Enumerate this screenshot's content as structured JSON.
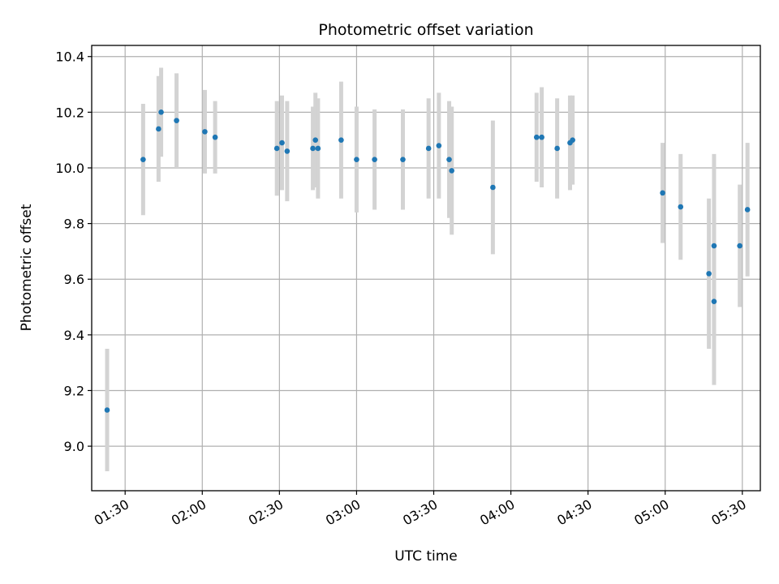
{
  "chart_data": {
    "type": "scatter",
    "title": "Photometric offset variation",
    "xlabel": "UTC time",
    "ylabel": "Photometric offset",
    "x_unit": "HH:MM UTC",
    "xlim": [
      "01:17",
      "05:37"
    ],
    "ylim": [
      8.84,
      10.44
    ],
    "x_ticks": [
      "01:30",
      "02:00",
      "02:30",
      "03:00",
      "03:30",
      "04:00",
      "04:30",
      "05:00",
      "05:30"
    ],
    "y_ticks": [
      9.0,
      9.2,
      9.4,
      9.6,
      9.8,
      10.0,
      10.2,
      10.4
    ],
    "y_tick_labels": [
      "9.0",
      "9.2",
      "9.4",
      "9.6",
      "9.8",
      "10.0",
      "10.2",
      "10.4"
    ],
    "grid": true,
    "x_tick_rotation": "30 degrees",
    "marker_color": "#1f77b4",
    "errorbar_color": "#d3d3d3",
    "points": [
      {
        "x": "01:23",
        "y": 9.13,
        "err": 0.22
      },
      {
        "x": "01:37",
        "y": 10.03,
        "err": 0.2
      },
      {
        "x": "01:43",
        "y": 10.14,
        "err": 0.19
      },
      {
        "x": "01:44",
        "y": 10.2,
        "err": 0.16
      },
      {
        "x": "01:50",
        "y": 10.17,
        "err": 0.17
      },
      {
        "x": "02:01",
        "y": 10.13,
        "err": 0.15
      },
      {
        "x": "02:05",
        "y": 10.11,
        "err": 0.13
      },
      {
        "x": "02:29",
        "y": 10.07,
        "err": 0.17
      },
      {
        "x": "02:31",
        "y": 10.09,
        "err": 0.17
      },
      {
        "x": "02:33",
        "y": 10.06,
        "err": 0.18
      },
      {
        "x": "02:43",
        "y": 10.07,
        "err": 0.15
      },
      {
        "x": "02:44",
        "y": 10.1,
        "err": 0.17
      },
      {
        "x": "02:45",
        "y": 10.07,
        "err": 0.18
      },
      {
        "x": "02:54",
        "y": 10.1,
        "err": 0.21
      },
      {
        "x": "03:00",
        "y": 10.03,
        "err": 0.19
      },
      {
        "x": "03:07",
        "y": 10.03,
        "err": 0.18
      },
      {
        "x": "03:18",
        "y": 10.03,
        "err": 0.18
      },
      {
        "x": "03:28",
        "y": 10.07,
        "err": 0.18
      },
      {
        "x": "03:32",
        "y": 10.08,
        "err": 0.19
      },
      {
        "x": "03:36",
        "y": 10.03,
        "err": 0.21
      },
      {
        "x": "03:37",
        "y": 9.99,
        "err": 0.23
      },
      {
        "x": "03:53",
        "y": 9.93,
        "err": 0.24
      },
      {
        "x": "04:10",
        "y": 10.11,
        "err": 0.16
      },
      {
        "x": "04:12",
        "y": 10.11,
        "err": 0.18
      },
      {
        "x": "04:18",
        "y": 10.07,
        "err": 0.18
      },
      {
        "x": "04:23",
        "y": 10.09,
        "err": 0.17
      },
      {
        "x": "04:24",
        "y": 10.1,
        "err": 0.16
      },
      {
        "x": "04:59",
        "y": 9.91,
        "err": 0.18
      },
      {
        "x": "05:06",
        "y": 9.86,
        "err": 0.19
      },
      {
        "x": "05:17",
        "y": 9.62,
        "err": 0.27
      },
      {
        "x": "05:19",
        "y": 9.72,
        "err": 0.33
      },
      {
        "x": "05:19",
        "y": 9.52,
        "err": 0.3
      },
      {
        "x": "05:29",
        "y": 9.72,
        "err": 0.22
      },
      {
        "x": "05:32",
        "y": 9.85,
        "err": 0.24
      }
    ]
  }
}
